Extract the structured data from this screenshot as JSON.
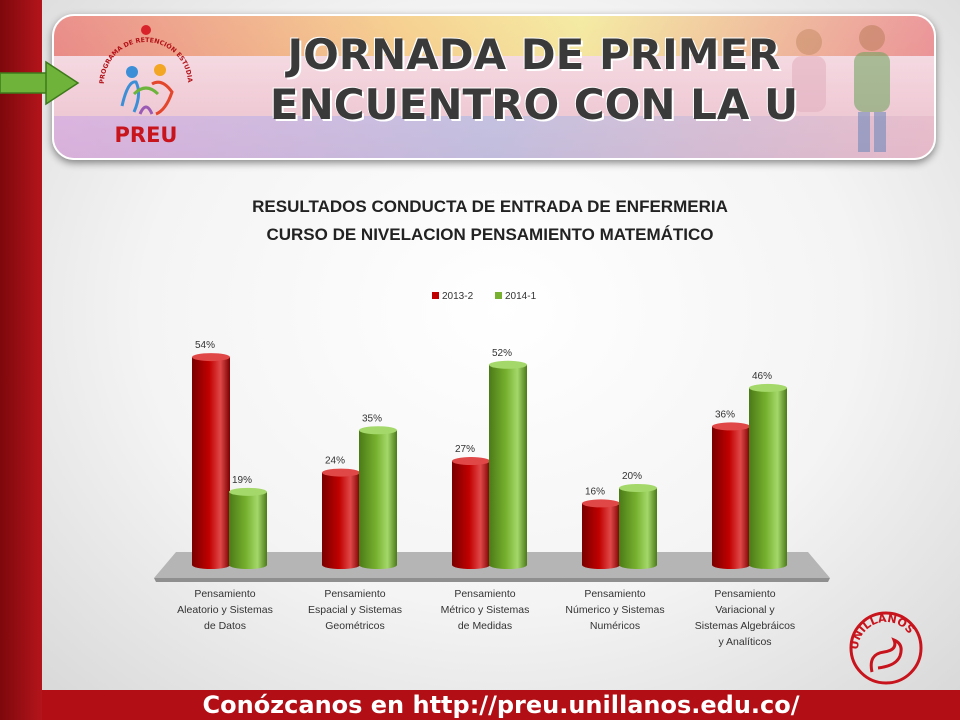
{
  "banner": {
    "title_line1": "JORNADA DE PRIMER",
    "title_line2": "ENCUENTRO CON LA U"
  },
  "logo": {
    "ring_text": "PROGRAMA DE RETENCIÓN ESTUDIANTIL UNILLANISTA",
    "name": "PREU"
  },
  "unillanos_logo": {
    "name": "UNILLANOS"
  },
  "footer": {
    "text": "Conózcanos en http://preu.unillanos.edu.co/"
  },
  "colors": {
    "series_2013": "#c00000",
    "series_2014": "#77b12f",
    "footer": "#b10f15"
  },
  "chart_data": {
    "type": "bar",
    "title_line1": "RESULTADOS CONDUCTA DE ENTRADA DE ENFERMERIA",
    "title_line2": "CURSO DE NIVELACION PENSAMIENTO MATEMÁTICO",
    "legend_position": "top",
    "ylim": [
      0,
      60
    ],
    "categories": [
      [
        "Pensamiento",
        "Aleatorio y Sistemas",
        "de Datos"
      ],
      [
        "Pensamiento",
        "Espacial y Sistemas",
        "Geométricos"
      ],
      [
        "Pensamiento",
        "Métrico y Sistemas",
        "de Medidas"
      ],
      [
        "Pensamiento",
        "Númerico y Sistemas",
        "Numéricos"
      ],
      [
        "Pensamiento",
        "Variacional y",
        "Sistemas Algebráicos",
        "y Analíticos"
      ]
    ],
    "series": [
      {
        "name": "2013-2",
        "values": [
          54,
          24,
          27,
          16,
          36
        ],
        "labels": [
          "54%",
          "24%",
          "27%",
          "16%",
          "36%"
        ]
      },
      {
        "name": "2014-1",
        "values": [
          19,
          35,
          52,
          20,
          46
        ],
        "labels": [
          "19%",
          "35%",
          "52%",
          "20%",
          "46%"
        ]
      }
    ]
  }
}
